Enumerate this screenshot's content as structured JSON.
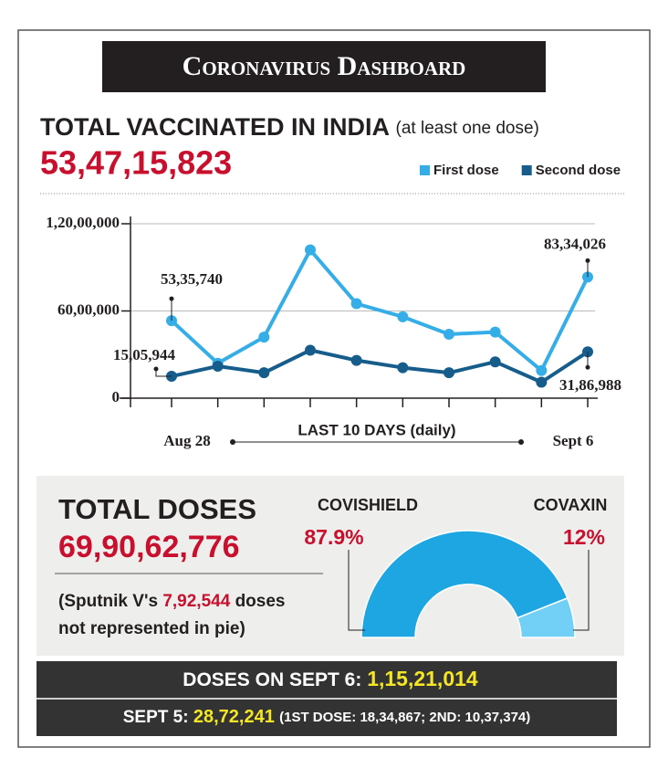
{
  "header": "Coronavirus Dashboard",
  "vaccinated": {
    "title": "TOTAL VACCINATED IN INDIA",
    "subtitle": "(at least one dose)",
    "total": "53,47,15,823"
  },
  "doses": {
    "title": "TOTAL DOSES",
    "total": "69,90,62,776",
    "note": {
      "prefix": "(Sputnik V's",
      "value": "7,92,544",
      "suffix": "doses",
      "line2": "not represented in pie)"
    }
  },
  "daily": {
    "today_label": "DOSES ON SEPT 6:",
    "today_value": "1,15,21,014",
    "yesterday_label": "SEPT 5:",
    "yesterday_value": "28,72,241",
    "yesterday_detail": "(1ST DOSE: 18,34,867; 2ND: 10,37,374)"
  },
  "chart_data": [
    {
      "type": "line",
      "x_label": "LAST 10 DAYS (daily)",
      "categories": [
        "Aug 28",
        null,
        null,
        null,
        null,
        null,
        null,
        null,
        null,
        "Sept 6"
      ],
      "series": [
        {
          "name": "First dose",
          "color": "#35aee8",
          "values": [
            5335740,
            2400000,
            4200000,
            10200000,
            6500000,
            5600000,
            4400000,
            4550000,
            1900000,
            8334026
          ],
          "value_labels": [
            "53,35,740",
            null,
            null,
            null,
            null,
            null,
            null,
            null,
            null,
            "83,34,026"
          ]
        },
        {
          "name": "Second dose",
          "color": "#165d8c",
          "values": [
            1505944,
            2200000,
            1750000,
            3300000,
            2600000,
            2100000,
            1750000,
            2500000,
            1100000,
            3186988
          ],
          "value_labels": [
            "15,05,944",
            null,
            null,
            null,
            null,
            null,
            null,
            null,
            null,
            "31,86,988"
          ]
        }
      ],
      "ylim": [
        0,
        12000000
      ],
      "yticks": [
        0,
        {
          "value": 6000000,
          "label": "60,00,000"
        },
        {
          "value": 12000000,
          "label": "1,20,00,000"
        }
      ],
      "grid": true
    },
    {
      "type": "pie",
      "categories": [
        "COVISHIELD",
        "COVAXIN"
      ],
      "values": [
        87.9,
        12
      ],
      "value_labels": [
        "87.9%",
        "12%"
      ],
      "colors": [
        "#1ea6e2",
        "#72d0f6"
      ]
    }
  ]
}
